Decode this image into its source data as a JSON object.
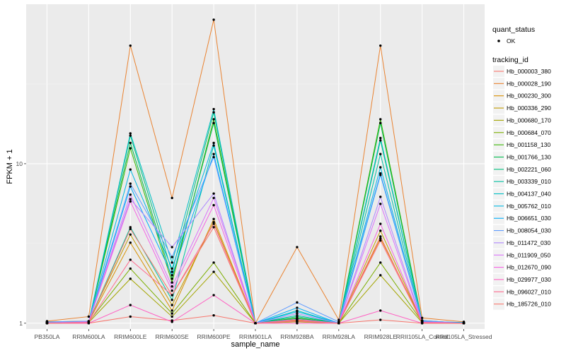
{
  "chart_data": {
    "type": "line",
    "xlabel": "sample_name",
    "ylabel": "FPKM + 1",
    "y_scale": "log10",
    "ylim": [
      0.92,
      100
    ],
    "y_ticks": [
      {
        "value": 1,
        "label": "1"
      },
      {
        "value": 10,
        "label": "10"
      }
    ],
    "categories": [
      "PB350LA",
      "RRIM600LA",
      "RRIM600LE",
      "RRIM600SE",
      "RRIM600PE",
      "RRIM901LA",
      "RRIM928BA",
      "RRIM928LA",
      "RRIM928LE",
      "RRII105LA_Control",
      "RRII105LA_Stressed"
    ],
    "legend_quant": {
      "title": "quant_status",
      "entries": [
        "OK"
      ]
    },
    "legend_tracking": {
      "title": "tracking_id"
    },
    "series": [
      {
        "name": "Hb_000003_380",
        "color": "#F8766D",
        "values": [
          1.0,
          1.0,
          1.1,
          1.04,
          1.12,
          1.0,
          1.02,
          1.0,
          1.05,
          1.0,
          1.0
        ]
      },
      {
        "name": "Hb_000028_190",
        "color": "#EA8331",
        "values": [
          1.03,
          1.1,
          55.0,
          6.1,
          80.0,
          1.0,
          3.0,
          1.05,
          55.0,
          1.08,
          1.02
        ]
      },
      {
        "name": "Hb_000230_300",
        "color": "#D89000",
        "values": [
          1.01,
          1.02,
          3.2,
          1.2,
          4.5,
          1.0,
          1.05,
          1.0,
          3.4,
          1.03,
          1.0
        ]
      },
      {
        "name": "Hb_000336_290",
        "color": "#C09B00",
        "values": [
          1.02,
          1.03,
          3.6,
          1.3,
          4.3,
          1.0,
          1.06,
          1.0,
          3.8,
          1.02,
          1.01
        ]
      },
      {
        "name": "Hb_000680_170",
        "color": "#A3A500",
        "values": [
          1.0,
          1.01,
          1.9,
          1.1,
          2.1,
          1.0,
          1.02,
          1.0,
          2.0,
          1.01,
          1.0
        ]
      },
      {
        "name": "Hb_000684_070",
        "color": "#7CAE00",
        "values": [
          1.01,
          1.02,
          2.2,
          1.15,
          2.4,
          1.0,
          1.03,
          1.0,
          2.4,
          1.02,
          1.0
        ]
      },
      {
        "name": "Hb_001158_130",
        "color": "#39B600",
        "values": [
          1.0,
          1.01,
          12.5,
          1.8,
          19.0,
          1.0,
          1.08,
          1.0,
          19.0,
          1.03,
          1.0
        ]
      },
      {
        "name": "Hb_001766_130",
        "color": "#00BB4E",
        "values": [
          1.02,
          1.02,
          13.5,
          1.9,
          18.0,
          1.0,
          1.07,
          1.0,
          18.0,
          1.02,
          1.0
        ]
      },
      {
        "name": "Hb_002221_060",
        "color": "#00BF7D",
        "values": [
          1.0,
          1.01,
          15.0,
          2.1,
          21.0,
          1.0,
          1.1,
          1.0,
          14.0,
          1.04,
          1.0
        ]
      },
      {
        "name": "Hb_003339_010",
        "color": "#00C1A3",
        "values": [
          1.01,
          1.02,
          4.0,
          1.4,
          13.0,
          1.0,
          1.12,
          1.0,
          11.5,
          1.02,
          1.01
        ]
      },
      {
        "name": "Hb_004137_040",
        "color": "#00BFC4",
        "values": [
          1.0,
          1.01,
          15.5,
          2.4,
          22.0,
          1.0,
          1.2,
          1.0,
          14.5,
          1.03,
          1.0
        ]
      },
      {
        "name": "Hb_005762_010",
        "color": "#00B9E3",
        "values": [
          1.01,
          1.02,
          9.2,
          2.2,
          13.5,
          1.0,
          1.18,
          1.0,
          9.5,
          1.02,
          1.0
        ]
      },
      {
        "name": "Hb_006651_030",
        "color": "#00ADFA",
        "values": [
          1.0,
          1.01,
          7.2,
          2.0,
          11.5,
          1.0,
          1.25,
          1.0,
          8.5,
          1.03,
          1.01
        ]
      },
      {
        "name": "Hb_008054_030",
        "color": "#619CFF",
        "values": [
          1.02,
          1.03,
          7.5,
          2.6,
          11.0,
          1.0,
          1.35,
          1.02,
          8.7,
          1.04,
          1.0
        ]
      },
      {
        "name": "Hb_011472_030",
        "color": "#AE87FF",
        "values": [
          1.01,
          1.02,
          6.0,
          3.0,
          6.5,
          1.0,
          1.15,
          1.0,
          6.2,
          1.02,
          1.0
        ]
      },
      {
        "name": "Hb_011909_050",
        "color": "#DB72FB",
        "values": [
          1.0,
          1.01,
          6.4,
          1.7,
          6.1,
          1.0,
          1.06,
          1.0,
          5.6,
          1.01,
          1.0
        ]
      },
      {
        "name": "Hb_012670_090",
        "color": "#F564E3",
        "values": [
          1.0,
          1.02,
          5.8,
          1.6,
          5.5,
          1.0,
          1.04,
          1.0,
          4.2,
          1.02,
          1.0
        ]
      },
      {
        "name": "Hb_029977_030",
        "color": "#FF61C3",
        "values": [
          1.0,
          1.0,
          1.3,
          1.02,
          1.5,
          1.0,
          1.0,
          1.0,
          1.2,
          1.0,
          1.0
        ]
      },
      {
        "name": "Hb_096027_010",
        "color": "#FF6C90",
        "values": [
          1.0,
          1.01,
          2.5,
          1.5,
          4.2,
          1.0,
          1.03,
          1.0,
          3.3,
          1.01,
          1.0
        ]
      },
      {
        "name": "Hb_185726_010",
        "color": "#F8766D",
        "values": [
          1.0,
          1.01,
          3.9,
          1.5,
          4.0,
          1.0,
          1.04,
          1.0,
          3.5,
          1.0,
          1.0
        ]
      }
    ]
  }
}
